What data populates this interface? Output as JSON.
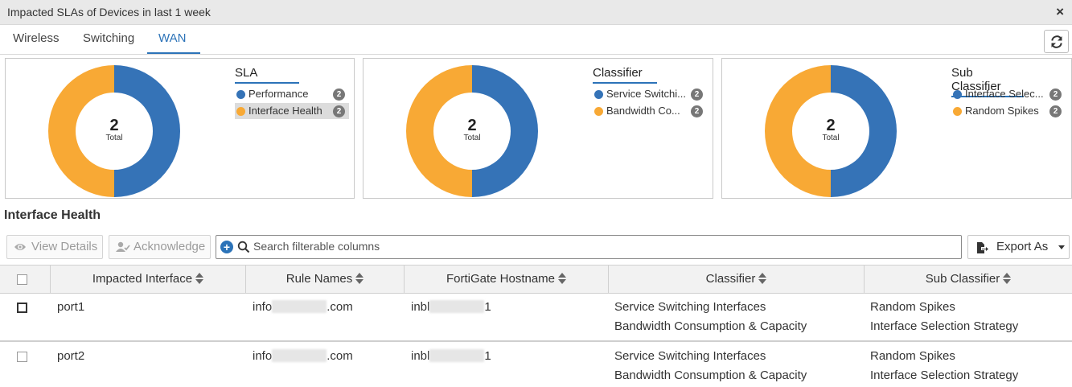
{
  "window": {
    "title": "Impacted SLAs of Devices in last 1 week",
    "close_label": "×"
  },
  "tabs": [
    {
      "label": "Wireless",
      "active": false
    },
    {
      "label": "Switching",
      "active": false
    },
    {
      "label": "WAN",
      "active": true
    }
  ],
  "colors": {
    "accent": "#2c73b8",
    "series_blue": "#3573b7",
    "series_orange": "#f8a935",
    "badge": "#777777"
  },
  "cards": [
    {
      "legend_title": "SLA",
      "total_number": "2",
      "total_label": "Total",
      "items": [
        {
          "label": "Performance",
          "count": "2",
          "color": "#3573b7",
          "selected": false
        },
        {
          "label": "Interface Health",
          "count": "2",
          "color": "#f8a935",
          "selected": true
        }
      ]
    },
    {
      "legend_title": "Classifier",
      "total_number": "2",
      "total_label": "Total",
      "items": [
        {
          "label": "Service Switchi...",
          "count": "2",
          "color": "#3573b7",
          "selected": false
        },
        {
          "label": "Bandwidth Co...",
          "count": "2",
          "color": "#f8a935",
          "selected": false
        }
      ]
    },
    {
      "legend_title": "Sub Classifier",
      "total_number": "2",
      "total_label": "Total",
      "items": [
        {
          "label": "Interface Selec...",
          "count": "2",
          "color": "#3573b7",
          "selected": false
        },
        {
          "label": "Random Spikes",
          "count": "2",
          "color": "#f8a935",
          "selected": false
        }
      ]
    }
  ],
  "section_title": "Interface Health",
  "toolbar": {
    "view_details": "View Details",
    "acknowledge": "Acknowledge",
    "search_placeholder": "Search filterable columns",
    "export_label": "Export As"
  },
  "table": {
    "columns": [
      "Impacted Interface",
      "Rule Names",
      "FortiGate Hostname",
      "Classifier",
      "Sub Classifier"
    ],
    "rows": [
      {
        "interface": "port1",
        "rule_prefix": "info",
        "rule_suffix": ".com",
        "host_prefix": "inbl",
        "host_suffix": "1",
        "classifier": [
          "Service Switching Interfaces",
          "Bandwidth Consumption & Capacity"
        ],
        "sub_classifier": [
          "Random Spikes",
          "Interface Selection Strategy"
        ]
      },
      {
        "interface": "port2",
        "rule_prefix": "info",
        "rule_suffix": ".com",
        "host_prefix": "inbl",
        "host_suffix": "1",
        "classifier": [
          "Service Switching Interfaces",
          "Bandwidth Consumption & Capacity"
        ],
        "sub_classifier": [
          "Random Spikes",
          "Interface Selection Strategy"
        ]
      }
    ]
  }
}
